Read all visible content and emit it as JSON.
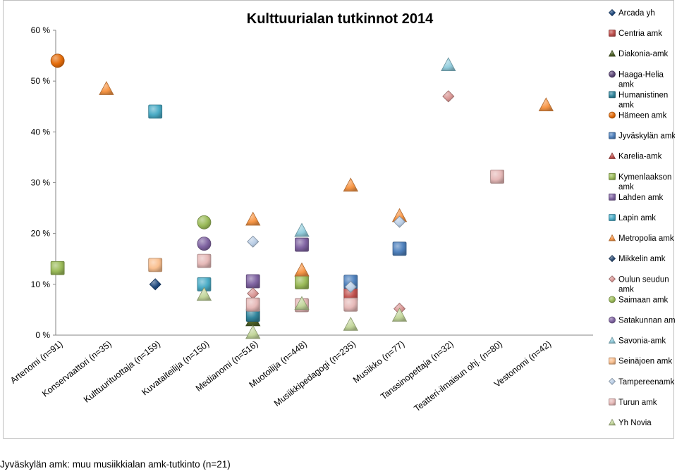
{
  "chart_data": {
    "type": "scatter",
    "title": "Kulttuurialan tutkinnot 2014",
    "y_ticks": [
      "0 %",
      "10 %",
      "20 %",
      "30 %",
      "40 %",
      "50 %",
      "60 %"
    ],
    "ylim": [
      0,
      60
    ],
    "categories": [
      "Artenomi (n=91)",
      "Konservaattori (n=35)",
      "Kulttuurituottaja (n=159)",
      "Kuvataiteilija (n=150)",
      "Medianomi (n=516)",
      "Muotoilija (n=448)",
      "Musiikkipedagogi (n=235)",
      "Musiikko (n=77)",
      "Tanssinopettaja (n=32)",
      "Teatteri-ilmaisun ohj. (n=80)",
      "Vestonomi (n=42)"
    ],
    "legend_position": "right",
    "series": [
      {
        "name": "Arcada yh",
        "color": "#1F497D",
        "marker": "diamond",
        "values": [
          null,
          null,
          10,
          null,
          null,
          null,
          null,
          null,
          null,
          null,
          null
        ]
      },
      {
        "name": "Centria amk",
        "color": "#C0504D",
        "marker": "square",
        "values": [
          null,
          null,
          null,
          null,
          null,
          null,
          8,
          null,
          null,
          null,
          null
        ]
      },
      {
        "name": "Diakonia-amk",
        "color": "#4F6228",
        "marker": "triangle",
        "values": [
          null,
          null,
          null,
          null,
          3,
          null,
          null,
          null,
          null,
          null,
          null
        ]
      },
      {
        "name": "Haaga-Helia amk",
        "color": "#604A7B",
        "marker": "circle",
        "values": [
          null,
          null,
          null,
          null,
          null,
          null,
          null,
          null,
          null,
          null,
          null
        ]
      },
      {
        "name": "Humanistinen amk",
        "color": "#31859C",
        "marker": "square",
        "values": [
          null,
          null,
          null,
          null,
          4,
          null,
          null,
          null,
          null,
          null,
          null
        ]
      },
      {
        "name": "Hämeen amk",
        "color": "#E46C0A",
        "marker": "circle",
        "values": [
          54,
          null,
          null,
          null,
          null,
          null,
          null,
          null,
          null,
          null,
          null
        ]
      },
      {
        "name": "Jyväskylän amk",
        "color": "#4F81BD",
        "marker": "square",
        "values": [
          null,
          null,
          null,
          null,
          null,
          null,
          10.5,
          17,
          null,
          null,
          null
        ]
      },
      {
        "name": "Karelia-amk",
        "color": "#C0504D",
        "marker": "triangle",
        "values": [
          null,
          null,
          null,
          null,
          null,
          null,
          null,
          null,
          null,
          null,
          null
        ]
      },
      {
        "name": "Kymenlaakson amk",
        "color": "#9BBB59",
        "marker": "square",
        "values": [
          13.2,
          null,
          null,
          null,
          null,
          10.4,
          null,
          null,
          null,
          null,
          null
        ]
      },
      {
        "name": "Lahden amk",
        "color": "#8064A2",
        "marker": "square",
        "values": [
          null,
          null,
          null,
          null,
          10.6,
          17.8,
          null,
          null,
          null,
          null,
          null
        ]
      },
      {
        "name": "Lapin amk",
        "color": "#4BACC6",
        "marker": "square",
        "values": [
          null,
          null,
          44,
          10,
          null,
          null,
          null,
          null,
          null,
          null,
          null
        ]
      },
      {
        "name": "Metropolia amk",
        "color": "#F79646",
        "marker": "triangle",
        "values": [
          null,
          48.5,
          null,
          null,
          22.8,
          12.8,
          29.5,
          23.5,
          null,
          null,
          45.3
        ]
      },
      {
        "name": "Mikkelin amk",
        "color": "#2C4D75",
        "marker": "diamond",
        "values": [
          null,
          null,
          null,
          null,
          null,
          null,
          null,
          null,
          null,
          null,
          null
        ]
      },
      {
        "name": "Oulun seudun amk",
        "color": "#D99694",
        "marker": "diamond",
        "values": [
          null,
          null,
          null,
          null,
          8.2,
          null,
          null,
          5.2,
          47,
          null,
          null
        ]
      },
      {
        "name": "Saimaan amk",
        "color": "#9BBB59",
        "marker": "circle",
        "values": [
          null,
          null,
          null,
          22.2,
          null,
          null,
          null,
          null,
          null,
          null,
          null
        ]
      },
      {
        "name": "Satakunnan amk",
        "color": "#8064A2",
        "marker": "circle",
        "values": [
          null,
          null,
          null,
          18,
          null,
          null,
          null,
          null,
          null,
          null,
          null
        ]
      },
      {
        "name": "Savonia-amk",
        "color": "#93CDDD",
        "marker": "triangle",
        "values": [
          null,
          null,
          null,
          null,
          null,
          20.6,
          null,
          null,
          53.2,
          null,
          null
        ]
      },
      {
        "name": "Seinäjoen amk",
        "color": "#FAC090",
        "marker": "square",
        "values": [
          null,
          null,
          13.8,
          null,
          null,
          null,
          null,
          null,
          null,
          null,
          null
        ]
      },
      {
        "name": "Tampereenamk",
        "color": "#B9CDE5",
        "marker": "diamond",
        "values": [
          null,
          null,
          null,
          null,
          18.4,
          null,
          9.5,
          22.3,
          null,
          null,
          null
        ]
      },
      {
        "name": "Turun amk",
        "color": "#E6B9B8",
        "marker": "square",
        "values": [
          null,
          null,
          null,
          14.6,
          6,
          5.9,
          6,
          null,
          null,
          31.2,
          null
        ]
      },
      {
        "name": "Yh Novia",
        "color": "#C3D69B",
        "marker": "triangle",
        "values": [
          null,
          null,
          null,
          8,
          0.5,
          6.2,
          2.1,
          3.9,
          null,
          null,
          null
        ]
      }
    ]
  },
  "footnote": "Jyväskylän amk: muu musiikkialan amk-tutkinto (n=21)"
}
